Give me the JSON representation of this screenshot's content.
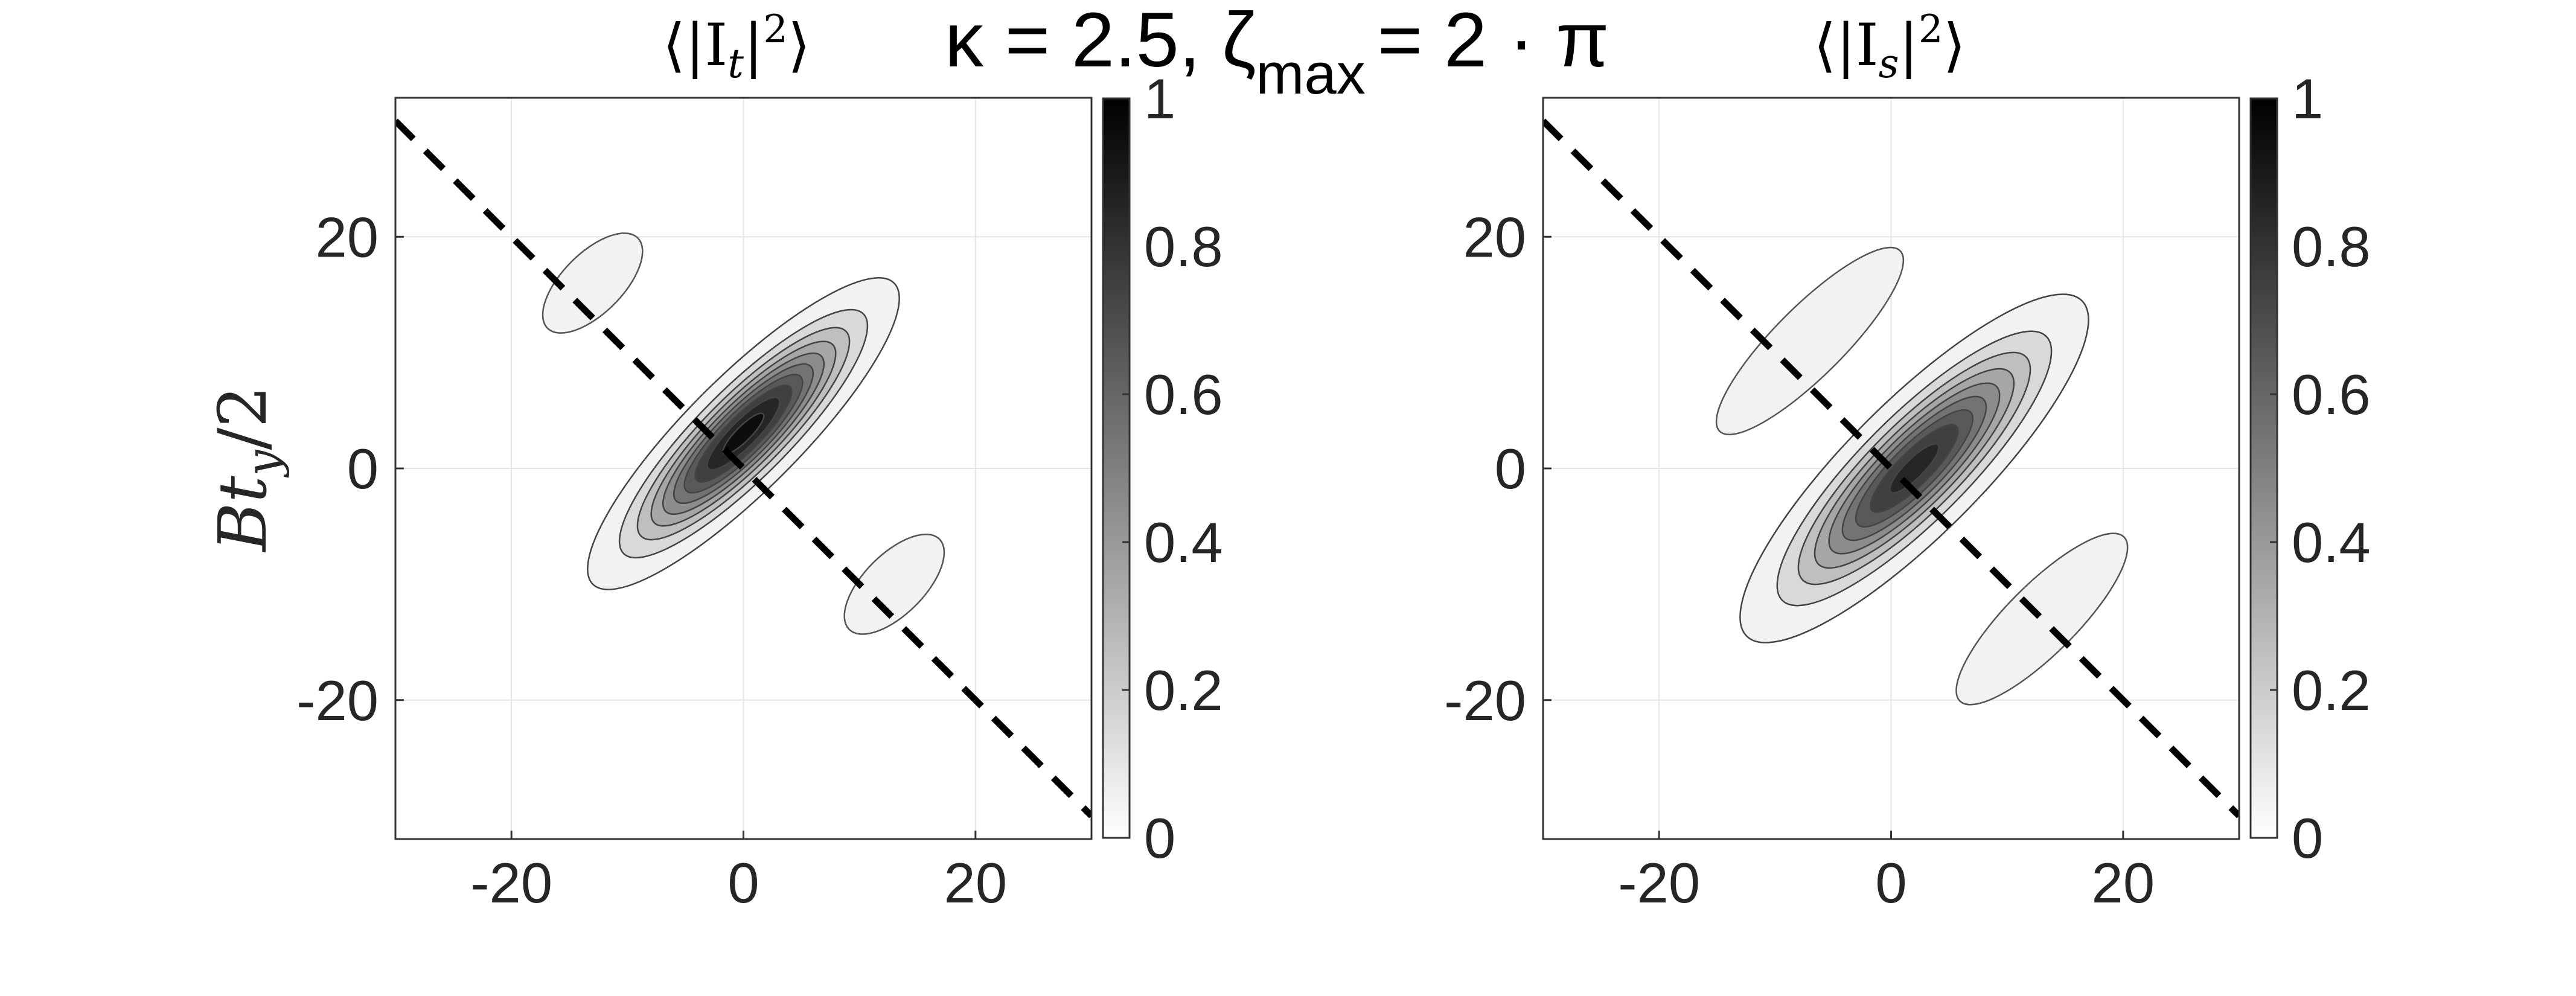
{
  "figure": {
    "suptitle_kappa": "κ = 2.5, ζ",
    "suptitle_max": "max",
    "suptitle_rest": "= 2 · π"
  },
  "chart_data": [
    {
      "type": "heatmap",
      "title": "⟨|I_t|²⟩",
      "title_parts": {
        "open": "⟨|I",
        "sub": "t",
        "close": "|",
        "sup": "2",
        "end": "⟩"
      },
      "xlabel": "",
      "ylabel": "Bt_y/2",
      "ylabel_parts": {
        "main": "Bt",
        "sub": "y",
        "rest": "/2"
      },
      "xlim": [
        -30,
        30
      ],
      "ylim": [
        -32,
        32
      ],
      "xticks": [
        -20,
        0,
        20
      ],
      "yticks": [
        -20,
        0,
        20
      ],
      "grid": true,
      "colormap": "gray (white=0, black=1)",
      "colorbar": {
        "range": [
          0,
          1
        ],
        "ticks": [
          "0",
          "0.2",
          "0.4",
          "0.6",
          "0.8",
          "1"
        ]
      },
      "reference_line": {
        "style": "dashed",
        "color": "#000000",
        "from": [
          -30,
          30
        ],
        "to": [
          30,
          -30
        ]
      },
      "central_peak": {
        "x": 0,
        "y": 3,
        "value": 1.0,
        "orientation_deg": -45,
        "sigma_major": 7.5,
        "sigma_minor": 2.0
      },
      "contour_levels": [
        0.05,
        0.15,
        0.25,
        0.35,
        0.45,
        0.55,
        0.65,
        0.75,
        0.85,
        0.95
      ],
      "side_lobes": [
        {
          "x": -13,
          "y": 16,
          "value": 0.05,
          "major": 5.5,
          "minor": 2.6
        },
        {
          "x": 13,
          "y": -10,
          "value": 0.05,
          "major": 5.5,
          "minor": 2.6
        }
      ]
    },
    {
      "type": "heatmap",
      "title": "⟨|I_s|²⟩",
      "title_parts": {
        "open": "⟨|I",
        "sub": "s",
        "close": "|",
        "sup": "2",
        "end": "⟩"
      },
      "xlabel": "",
      "ylabel": "",
      "xlim": [
        -30,
        30
      ],
      "ylim": [
        -32,
        32
      ],
      "xticks": [
        -20,
        0,
        20
      ],
      "yticks": [
        -20,
        0,
        20
      ],
      "grid": true,
      "colormap": "gray (white=0, black=1)",
      "colorbar": {
        "range": [
          0,
          1
        ],
        "ticks": [
          "0",
          "0.2",
          "0.4",
          "0.6",
          "0.8",
          "1"
        ]
      },
      "reference_line": {
        "style": "dashed",
        "color": "#000000",
        "from": [
          -30,
          30
        ],
        "to": [
          30,
          -30
        ]
      },
      "central_peak": {
        "x": 2,
        "y": 0,
        "value": 0.9,
        "orientation_deg": -45,
        "sigma_major": 8.5,
        "sigma_minor": 2.4
      },
      "contour_levels": [
        0.05,
        0.15,
        0.25,
        0.35,
        0.45,
        0.55,
        0.65,
        0.75,
        0.85
      ],
      "side_lobes": [
        {
          "x": -7,
          "y": 11,
          "value": 0.05,
          "major": 11,
          "minor": 3.0
        },
        {
          "x": 13,
          "y": -13,
          "value": 0.05,
          "major": 10,
          "minor": 3.0
        }
      ]
    }
  ]
}
